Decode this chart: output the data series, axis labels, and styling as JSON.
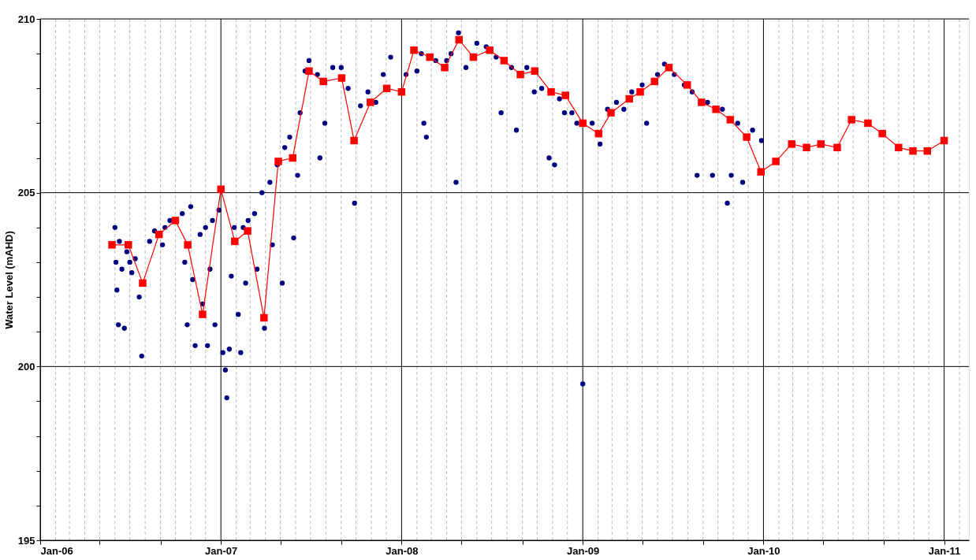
{
  "chart_data": {
    "type": "scatter",
    "ylabel": "Water Level (mAHD)",
    "xlim": [
      "2006-01-01",
      "2011-02-20"
    ],
    "ylim": [
      195,
      210
    ],
    "yticks": [
      195,
      {
        "value": 196,
        "label": null
      },
      {
        "value": 197,
        "label": null
      },
      {
        "value": 198,
        "label": null
      },
      {
        "value": 199,
        "label": null
      },
      200,
      {
        "value": 201,
        "label": null
      },
      {
        "value": 202,
        "label": null
      },
      {
        "value": 203,
        "label": null
      },
      {
        "value": 204,
        "label": null
      },
      205,
      {
        "value": 206,
        "label": null
      },
      {
        "value": 207,
        "label": null
      },
      {
        "value": 208,
        "label": null
      },
      {
        "value": 209,
        "label": null
      },
      210
    ],
    "xticks": [
      {
        "value": "2006-01-01",
        "label": "Jan-06"
      },
      {
        "value": "2006-02-01",
        "label": null
      },
      {
        "value": "2006-03-01",
        "label": null
      },
      {
        "value": "2006-04-01",
        "label": null
      },
      {
        "value": "2006-05-01",
        "label": null
      },
      {
        "value": "2006-06-01",
        "label": null
      },
      {
        "value": "2006-07-01",
        "label": null
      },
      {
        "value": "2006-08-01",
        "label": null
      },
      {
        "value": "2006-09-01",
        "label": null
      },
      {
        "value": "2006-10-01",
        "label": null
      },
      {
        "value": "2006-11-01",
        "label": null
      },
      {
        "value": "2006-12-01",
        "label": null
      },
      {
        "value": "2007-01-01",
        "label": "Jan-07"
      },
      {
        "value": "2007-02-01",
        "label": null
      },
      {
        "value": "2007-03-01",
        "label": null
      },
      {
        "value": "2007-04-01",
        "label": null
      },
      {
        "value": "2007-05-01",
        "label": null
      },
      {
        "value": "2007-06-01",
        "label": null
      },
      {
        "value": "2007-07-01",
        "label": null
      },
      {
        "value": "2007-08-01",
        "label": null
      },
      {
        "value": "2007-09-01",
        "label": null
      },
      {
        "value": "2007-10-01",
        "label": null
      },
      {
        "value": "2007-11-01",
        "label": null
      },
      {
        "value": "2007-12-01",
        "label": null
      },
      {
        "value": "2008-01-01",
        "label": "Jan-08"
      },
      {
        "value": "2008-02-01",
        "label": null
      },
      {
        "value": "2008-03-01",
        "label": null
      },
      {
        "value": "2008-04-01",
        "label": null
      },
      {
        "value": "2008-05-01",
        "label": null
      },
      {
        "value": "2008-06-01",
        "label": null
      },
      {
        "value": "2008-07-01",
        "label": null
      },
      {
        "value": "2008-08-01",
        "label": null
      },
      {
        "value": "2008-09-01",
        "label": null
      },
      {
        "value": "2008-10-01",
        "label": null
      },
      {
        "value": "2008-11-01",
        "label": null
      },
      {
        "value": "2008-12-01",
        "label": null
      },
      {
        "value": "2009-01-01",
        "label": "Jan-09"
      },
      {
        "value": "2009-02-01",
        "label": null
      },
      {
        "value": "2009-03-01",
        "label": null
      },
      {
        "value": "2009-04-01",
        "label": null
      },
      {
        "value": "2009-05-01",
        "label": null
      },
      {
        "value": "2009-06-01",
        "label": null
      },
      {
        "value": "2009-07-01",
        "label": null
      },
      {
        "value": "2009-08-01",
        "label": null
      },
      {
        "value": "2009-09-01",
        "label": null
      },
      {
        "value": "2009-10-01",
        "label": null
      },
      {
        "value": "2009-11-01",
        "label": null
      },
      {
        "value": "2009-12-01",
        "label": null
      },
      {
        "value": "2010-01-01",
        "label": "Jan-10"
      },
      {
        "value": "2010-02-01",
        "label": null
      },
      {
        "value": "2010-03-01",
        "label": null
      },
      {
        "value": "2010-04-01",
        "label": null
      },
      {
        "value": "2010-05-01",
        "label": null
      },
      {
        "value": "2010-06-01",
        "label": null
      },
      {
        "value": "2010-07-01",
        "label": null
      },
      {
        "value": "2010-08-01",
        "label": null
      },
      {
        "value": "2010-09-01",
        "label": null
      },
      {
        "value": "2010-10-01",
        "label": null
      },
      {
        "value": "2010-11-01",
        "label": null
      },
      {
        "value": "2010-12-01",
        "label": null
      },
      {
        "value": "2011-01-01",
        "label": "Jan-11"
      },
      {
        "value": "2011-02-01",
        "label": null
      }
    ],
    "grid": true,
    "series": [
      {
        "type": "scatter",
        "marker": "circle",
        "color": "#000080",
        "x": [
          "2006-06-01",
          "2006-06-03",
          "2006-06-05",
          "2006-06-08",
          "2006-06-10",
          "2006-06-15",
          "2006-06-20",
          "2006-06-25",
          "2006-07-01",
          "2006-07-05",
          "2006-07-12",
          "2006-07-20",
          "2006-07-25",
          "2006-08-10",
          "2006-08-20",
          "2006-09-05",
          "2006-09-10",
          "2006-09-20",
          "2006-10-15",
          "2006-10-20",
          "2006-10-25",
          "2006-11-01",
          "2006-11-05",
          "2006-11-10",
          "2006-11-20",
          "2006-11-25",
          "2006-12-01",
          "2006-12-05",
          "2006-12-10",
          "2006-12-15",
          "2006-12-20",
          "2006-12-28",
          "2007-01-05",
          "2007-01-10",
          "2007-01-13",
          "2007-01-18",
          "2007-01-22",
          "2007-01-28",
          "2007-02-05",
          "2007-02-10",
          "2007-02-15",
          "2007-02-20",
          "2007-02-25",
          "2007-03-10",
          "2007-03-15",
          "2007-03-25",
          "2007-03-30",
          "2007-04-10",
          "2007-04-15",
          "2007-04-25",
          "2007-05-05",
          "2007-05-10",
          "2007-05-20",
          "2007-05-28",
          "2007-06-05",
          "2007-06-10",
          "2007-06-20",
          "2007-06-28",
          "2007-07-15",
          "2007-07-20",
          "2007-07-30",
          "2007-08-15",
          "2007-09-01",
          "2007-09-15",
          "2007-09-28",
          "2007-10-10",
          "2007-10-25",
          "2007-11-10",
          "2007-11-25",
          "2007-12-10",
          "2008-01-10",
          "2008-02-01",
          "2008-02-10",
          "2008-02-15",
          "2008-02-20",
          "2008-03-10",
          "2008-04-01",
          "2008-04-10",
          "2008-04-20",
          "2008-04-25",
          "2008-05-10",
          "2008-06-01",
          "2008-06-20",
          "2008-07-10",
          "2008-07-20",
          "2008-08-10",
          "2008-08-20",
          "2008-09-10",
          "2008-09-25",
          "2008-10-10",
          "2008-10-25",
          "2008-11-05",
          "2008-11-15",
          "2008-11-25",
          "2008-12-10",
          "2008-12-20",
          "2009-01-01",
          "2009-01-20",
          "2009-02-05",
          "2009-02-20",
          "2009-03-10",
          "2009-03-25",
          "2009-04-10",
          "2009-05-01",
          "2009-05-10",
          "2009-06-01",
          "2009-06-15",
          "2009-07-05",
          "2009-07-25",
          "2009-08-10",
          "2009-08-20",
          "2009-09-10",
          "2009-09-20",
          "2009-10-10",
          "2009-10-20",
          "2009-10-28",
          "2009-11-10",
          "2009-11-20",
          "2009-12-10",
          "2009-12-28"
        ],
        "values": [
          204.0,
          203.0,
          202.2,
          201.2,
          203.6,
          202.8,
          201.1,
          203.3,
          203.0,
          202.7,
          203.1,
          202.0,
          200.3,
          203.6,
          203.9,
          203.5,
          204.0,
          204.2,
          204.4,
          203.0,
          201.2,
          204.6,
          202.5,
          200.6,
          203.8,
          201.8,
          204.0,
          200.6,
          202.8,
          204.2,
          201.2,
          204.5,
          200.4,
          199.9,
          199.1,
          200.5,
          202.6,
          204.0,
          201.5,
          200.4,
          204.0,
          202.4,
          204.2,
          204.4,
          202.8,
          205.0,
          201.1,
          205.3,
          203.5,
          205.8,
          202.4,
          206.3,
          206.6,
          203.7,
          205.5,
          207.3,
          208.5,
          208.8,
          208.4,
          206.0,
          207.0,
          208.6,
          208.6,
          208.0,
          204.7,
          207.5,
          207.9,
          207.6,
          208.4,
          208.9,
          208.4,
          208.5,
          209.0,
          207.0,
          206.6,
          208.8,
          208.8,
          209.0,
          205.3,
          209.6,
          208.6,
          209.3,
          209.2,
          208.9,
          207.3,
          208.6,
          206.8,
          208.6,
          207.9,
          208.0,
          206.0,
          205.8,
          207.7,
          207.3,
          207.3,
          207.0,
          199.5,
          207.0,
          206.4,
          207.4,
          207.6,
          207.4,
          207.9,
          208.1,
          207.0,
          208.4,
          208.7,
          208.4,
          208.1,
          207.9,
          205.5,
          207.6,
          205.5,
          207.4,
          204.7,
          205.5,
          207.0,
          205.3,
          206.8,
          206.5
        ]
      },
      {
        "type": "line",
        "marker": "square",
        "line_style": "solid",
        "color": "#ff0000",
        "x": [
          "2006-05-26",
          "2006-06-28",
          "2006-07-27",
          "2006-08-29",
          "2006-10-01",
          "2006-10-26",
          "2006-11-25",
          "2007-01-01",
          "2007-01-29",
          "2007-02-24",
          "2007-03-29",
          "2007-04-27",
          "2007-05-26",
          "2007-06-28",
          "2007-07-27",
          "2007-09-02",
          "2007-09-27",
          "2007-10-30",
          "2007-12-02",
          "2008-01-01",
          "2008-01-26",
          "2008-02-27",
          "2008-03-28",
          "2008-04-26",
          "2008-05-25",
          "2008-06-27",
          "2008-07-26",
          "2008-08-28",
          "2008-09-26",
          "2008-10-29",
          "2008-11-27",
          "2009-01-01",
          "2009-02-02",
          "2009-02-27",
          "2009-04-05",
          "2009-04-27",
          "2009-05-26",
          "2009-06-24",
          "2009-07-31",
          "2009-08-29",
          "2009-09-27",
          "2009-10-26",
          "2009-11-28",
          "2009-12-27",
          "2010-01-26",
          "2010-02-27",
          "2010-03-29",
          "2010-04-27",
          "2010-05-30",
          "2010-06-28",
          "2010-07-31",
          "2010-08-29",
          "2010-10-01",
          "2010-10-30",
          "2010-11-28",
          "2011-01-01"
        ],
        "values": [
          203.5,
          203.5,
          202.4,
          203.8,
          204.2,
          203.5,
          201.5,
          205.1,
          203.6,
          203.9,
          201.4,
          205.9,
          206.0,
          208.5,
          208.2,
          208.3,
          206.5,
          207.6,
          208.0,
          207.9,
          209.1,
          208.9,
          208.6,
          209.4,
          208.9,
          209.1,
          208.8,
          208.4,
          208.5,
          207.9,
          207.8,
          207.0,
          206.7,
          207.3,
          207.7,
          207.9,
          208.2,
          208.6,
          208.1,
          207.6,
          207.4,
          207.1,
          206.6,
          205.6,
          205.9,
          206.4,
          206.3,
          206.4,
          206.3,
          207.1,
          207.0,
          206.7,
          206.3,
          206.2,
          206.2,
          206.5
        ]
      }
    ]
  }
}
